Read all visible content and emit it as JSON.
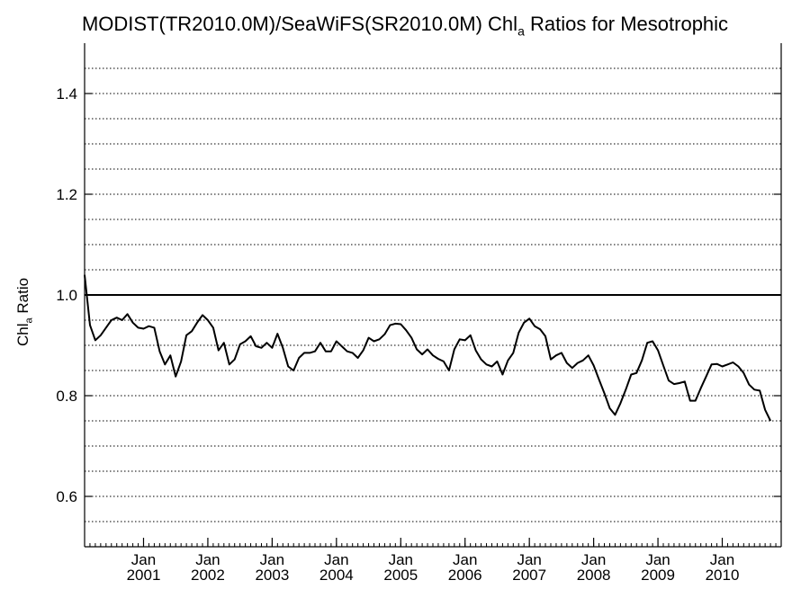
{
  "chart_data": {
    "type": "line",
    "title_main": "MODIST(TR2010.0M)/SeaWiFS(SR2010.0M)  Chl",
    "title_sub": "a",
    "title_tail": " Ratios for Mesotrophic",
    "ylabel_main": "Chl",
    "ylabel_sub": "a",
    "ylabel_tail": " Ratio",
    "ylim": [
      0.5,
      1.5
    ],
    "yticks": [
      {
        "value": 0.6,
        "label": "0.6"
      },
      {
        "value": 0.8,
        "label": "0.8"
      },
      {
        "value": 1.0,
        "label": "1.0"
      },
      {
        "value": 1.2,
        "label": "1.2"
      },
      {
        "value": 1.4,
        "label": "1.4"
      }
    ],
    "ygrid_dotted": [
      0.55,
      0.6,
      0.65,
      0.7,
      0.75,
      0.8,
      0.85,
      0.9,
      0.95,
      1.05,
      1.1,
      1.15,
      1.2,
      1.25,
      1.3,
      1.35,
      1.4,
      1.45
    ],
    "reference_line": 1.0,
    "xlim": [
      "2000-02",
      "2010-12"
    ],
    "xticks": [
      {
        "date": "2001-01",
        "month": "Jan",
        "year": "2001"
      },
      {
        "date": "2002-01",
        "month": "Jan",
        "year": "2002"
      },
      {
        "date": "2003-01",
        "month": "Jan",
        "year": "2003"
      },
      {
        "date": "2004-01",
        "month": "Jan",
        "year": "2004"
      },
      {
        "date": "2005-01",
        "month": "Jan",
        "year": "2005"
      },
      {
        "date": "2006-01",
        "month": "Jan",
        "year": "2006"
      },
      {
        "date": "2007-01",
        "month": "Jan",
        "year": "2007"
      },
      {
        "date": "2008-01",
        "month": "Jan",
        "year": "2008"
      },
      {
        "date": "2009-01",
        "month": "Jan",
        "year": "2009"
      },
      {
        "date": "2010-01",
        "month": "Jan",
        "year": "2010"
      }
    ],
    "grid": true,
    "series": [
      {
        "color": "#000000",
        "points": [
          [
            "2000-02",
            1.04
          ],
          [
            "2000-03",
            0.94
          ],
          [
            "2000-04",
            0.91
          ],
          [
            "2000-05",
            0.92
          ],
          [
            "2000-06",
            0.935
          ],
          [
            "2000-07",
            0.95
          ],
          [
            "2000-08",
            0.955
          ],
          [
            "2000-09",
            0.95
          ],
          [
            "2000-10",
            0.962
          ],
          [
            "2000-11",
            0.945
          ],
          [
            "2000-12",
            0.935
          ],
          [
            "2001-01",
            0.933
          ],
          [
            "2001-02",
            0.938
          ],
          [
            "2001-03",
            0.935
          ],
          [
            "2001-04",
            0.888
          ],
          [
            "2001-05",
            0.862
          ],
          [
            "2001-06",
            0.88
          ],
          [
            "2001-07",
            0.838
          ],
          [
            "2001-08",
            0.868
          ],
          [
            "2001-09",
            0.92
          ],
          [
            "2001-10",
            0.928
          ],
          [
            "2001-11",
            0.945
          ],
          [
            "2001-12",
            0.96
          ],
          [
            "2002-01",
            0.95
          ],
          [
            "2002-02",
            0.935
          ],
          [
            "2002-03",
            0.89
          ],
          [
            "2002-04",
            0.905
          ],
          [
            "2002-05",
            0.862
          ],
          [
            "2002-06",
            0.872
          ],
          [
            "2002-07",
            0.902
          ],
          [
            "2002-08",
            0.908
          ],
          [
            "2002-09",
            0.918
          ],
          [
            "2002-10",
            0.898
          ],
          [
            "2002-11",
            0.895
          ],
          [
            "2002-12",
            0.905
          ],
          [
            "2003-01",
            0.895
          ],
          [
            "2003-02",
            0.923
          ],
          [
            "2003-03",
            0.895
          ],
          [
            "2003-04",
            0.858
          ],
          [
            "2003-05",
            0.85
          ],
          [
            "2003-06",
            0.875
          ],
          [
            "2003-07",
            0.885
          ],
          [
            "2003-08",
            0.885
          ],
          [
            "2003-09",
            0.888
          ],
          [
            "2003-10",
            0.905
          ],
          [
            "2003-11",
            0.888
          ],
          [
            "2003-12",
            0.888
          ],
          [
            "2004-01",
            0.908
          ],
          [
            "2004-02",
            0.898
          ],
          [
            "2004-03",
            0.888
          ],
          [
            "2004-04",
            0.885
          ],
          [
            "2004-05",
            0.875
          ],
          [
            "2004-06",
            0.89
          ],
          [
            "2004-07",
            0.915
          ],
          [
            "2004-08",
            0.908
          ],
          [
            "2004-09",
            0.912
          ],
          [
            "2004-10",
            0.922
          ],
          [
            "2004-11",
            0.94
          ],
          [
            "2004-12",
            0.943
          ],
          [
            "2005-01",
            0.942
          ],
          [
            "2005-02",
            0.93
          ],
          [
            "2005-03",
            0.915
          ],
          [
            "2005-04",
            0.892
          ],
          [
            "2005-05",
            0.882
          ],
          [
            "2005-06",
            0.892
          ],
          [
            "2005-07",
            0.88
          ],
          [
            "2005-08",
            0.873
          ],
          [
            "2005-09",
            0.868
          ],
          [
            "2005-10",
            0.85
          ],
          [
            "2005-11",
            0.892
          ],
          [
            "2005-12",
            0.912
          ],
          [
            "2006-01",
            0.91
          ],
          [
            "2006-02",
            0.92
          ],
          [
            "2006-03",
            0.89
          ],
          [
            "2006-04",
            0.872
          ],
          [
            "2006-05",
            0.862
          ],
          [
            "2006-06",
            0.858
          ],
          [
            "2006-07",
            0.868
          ],
          [
            "2006-08",
            0.842
          ],
          [
            "2006-09",
            0.87
          ],
          [
            "2006-10",
            0.885
          ],
          [
            "2006-11",
            0.925
          ],
          [
            "2006-12",
            0.945
          ],
          [
            "2007-01",
            0.953
          ],
          [
            "2007-02",
            0.938
          ],
          [
            "2007-03",
            0.932
          ],
          [
            "2007-04",
            0.918
          ],
          [
            "2007-05",
            0.872
          ],
          [
            "2007-06",
            0.88
          ],
          [
            "2007-07",
            0.885
          ],
          [
            "2007-08",
            0.865
          ],
          [
            "2007-09",
            0.855
          ],
          [
            "2007-10",
            0.865
          ],
          [
            "2007-11",
            0.87
          ],
          [
            "2007-12",
            0.88
          ],
          [
            "2008-01",
            0.86
          ],
          [
            "2008-02",
            0.832
          ],
          [
            "2008-03",
            0.805
          ],
          [
            "2008-04",
            0.775
          ],
          [
            "2008-05",
            0.762
          ],
          [
            "2008-06",
            0.785
          ],
          [
            "2008-07",
            0.812
          ],
          [
            "2008-08",
            0.842
          ],
          [
            "2008-09",
            0.845
          ],
          [
            "2008-10",
            0.87
          ],
          [
            "2008-11",
            0.905
          ],
          [
            "2008-12",
            0.908
          ],
          [
            "2009-01",
            0.89
          ],
          [
            "2009-02",
            0.86
          ],
          [
            "2009-03",
            0.83
          ],
          [
            "2009-04",
            0.823
          ],
          [
            "2009-05",
            0.825
          ],
          [
            "2009-06",
            0.828
          ],
          [
            "2009-07",
            0.79
          ],
          [
            "2009-08",
            0.79
          ],
          [
            "2009-09",
            0.815
          ],
          [
            "2009-10",
            0.838
          ],
          [
            "2009-11",
            0.862
          ],
          [
            "2009-12",
            0.863
          ],
          [
            "2010-01",
            0.858
          ],
          [
            "2010-02",
            0.862
          ],
          [
            "2010-03",
            0.866
          ],
          [
            "2010-04",
            0.858
          ],
          [
            "2010-05",
            0.845
          ],
          [
            "2010-06",
            0.822
          ],
          [
            "2010-07",
            0.812
          ],
          [
            "2010-08",
            0.81
          ],
          [
            "2010-09",
            0.772
          ],
          [
            "2010-10",
            0.75
          ]
        ]
      }
    ]
  }
}
